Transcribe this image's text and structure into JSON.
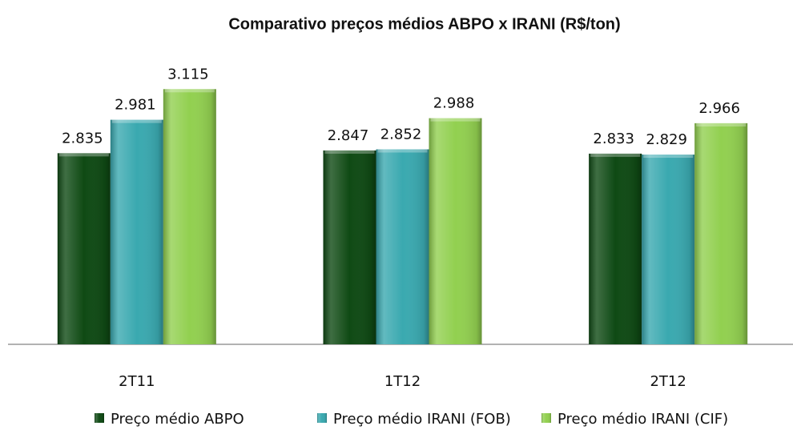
{
  "chart_data": {
    "type": "bar",
    "title": "Comparativo preços médios ABPO x IRANI (R$/ton)",
    "categories": [
      "2T11",
      "1T12",
      "2T12"
    ],
    "series": [
      {
        "name": "Preço médio ABPO",
        "color": "#0f4a14",
        "values": [
          2835,
          2847,
          2833
        ],
        "value_labels": [
          "2.835",
          "2.847",
          "2.833"
        ]
      },
      {
        "name": "Preço médio IRANI  (FOB)",
        "color": "#3aa9b0",
        "values": [
          2981,
          2852,
          2829
        ],
        "value_labels": [
          "2.981",
          "2.852",
          "2.829"
        ]
      },
      {
        "name": "Preço médio IRANI  (CIF)",
        "color": "#92d050",
        "values": [
          3115,
          2988,
          2966
        ],
        "value_labels": [
          "3.115",
          "2.988",
          "2.966"
        ]
      }
    ],
    "ylim": [
      2000,
      3200
    ],
    "legend": "bottom"
  }
}
